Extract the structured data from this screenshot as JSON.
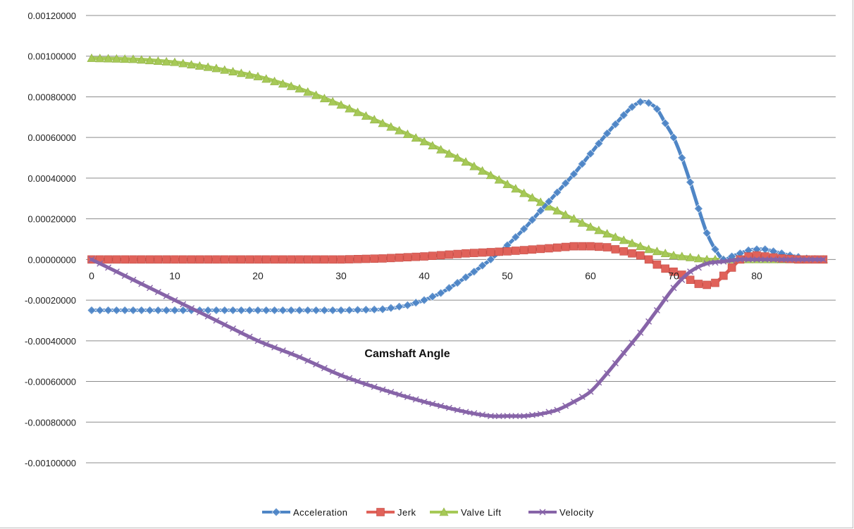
{
  "chart_data": {
    "type": "line",
    "title": "",
    "xlabel": "Camshaft Angle",
    "ylabel": "",
    "xlim": [
      0,
      88
    ],
    "ylim": [
      -0.001,
      0.0012
    ],
    "yticks": [
      0.0012,
      0.001,
      0.0008,
      0.0006,
      0.0004,
      0.0002,
      0,
      -0.0002,
      -0.0004,
      -0.0006,
      -0.0008,
      -0.001
    ],
    "ytick_labels": [
      "0.00120000",
      "0.00100000",
      "0.00080000",
      "0.00060000",
      "0.00040000",
      "0.00020000",
      "0.00000000",
      "-0.00020000",
      "-0.00040000",
      "-0.00060000",
      "-0.00080000",
      "-0.00100000"
    ],
    "xticks": [
      0,
      10,
      20,
      30,
      40,
      50,
      60,
      70,
      80
    ],
    "xtick_labels": [
      "0",
      "10",
      "20",
      "30",
      "40",
      "50",
      "60",
      "70",
      "80"
    ],
    "grid": "horizontal",
    "legend_position": "bottom",
    "series": [
      {
        "name": "Acceleration",
        "color": "#4f86c6",
        "marker": "diamond",
        "points": [
          [
            0,
            -0.00025
          ],
          [
            10,
            -0.00025
          ],
          [
            20,
            -0.00025
          ],
          [
            30,
            -0.00025
          ],
          [
            35,
            -0.000245
          ],
          [
            38,
            -0.000225
          ],
          [
            40,
            -0.0002
          ],
          [
            42,
            -0.000165
          ],
          [
            44,
            -0.000115
          ],
          [
            46,
            -6e-05
          ],
          [
            48,
            0.0
          ],
          [
            50,
            7e-05
          ],
          [
            52,
            0.00015
          ],
          [
            54,
            0.00024
          ],
          [
            56,
            0.00033
          ],
          [
            58,
            0.00042
          ],
          [
            60,
            0.00052
          ],
          [
            62,
            0.00062
          ],
          [
            64,
            0.00071
          ],
          [
            65,
            0.00075
          ],
          [
            66,
            0.000775
          ],
          [
            67,
            0.00077
          ],
          [
            68,
            0.00074
          ],
          [
            69,
            0.00067
          ],
          [
            70,
            0.0006
          ],
          [
            71,
            0.0005
          ],
          [
            72,
            0.00038
          ],
          [
            73,
            0.00025
          ],
          [
            74,
            0.00013
          ],
          [
            75,
            5e-05
          ],
          [
            76,
            0.0
          ],
          [
            77,
            1.5e-05
          ],
          [
            78,
            3e-05
          ],
          [
            79,
            4.5e-05
          ],
          [
            80,
            5e-05
          ],
          [
            81,
            5e-05
          ],
          [
            82,
            4e-05
          ],
          [
            84,
            2e-05
          ],
          [
            86,
            5e-06
          ],
          [
            88,
            0.0
          ]
        ]
      },
      {
        "name": "Jerk",
        "color": "#e0625a",
        "marker": "square",
        "points": [
          [
            0,
            0.0
          ],
          [
            20,
            0.0
          ],
          [
            30,
            0.0
          ],
          [
            35,
            5e-06
          ],
          [
            40,
            1.5e-05
          ],
          [
            45,
            3e-05
          ],
          [
            50,
            4e-05
          ],
          [
            55,
            5.5e-05
          ],
          [
            58,
            6.5e-05
          ],
          [
            60,
            6.5e-05
          ],
          [
            62,
            6e-05
          ],
          [
            64,
            4e-05
          ],
          [
            66,
            2e-05
          ],
          [
            67,
            0.0
          ],
          [
            68,
            -2.5e-05
          ],
          [
            69,
            -4.5e-05
          ],
          [
            70,
            -6e-05
          ],
          [
            71,
            -7.5e-05
          ],
          [
            72,
            -0.0001
          ],
          [
            73,
            -0.00012
          ],
          [
            74,
            -0.000125
          ],
          [
            75,
            -0.000115
          ],
          [
            76,
            -8e-05
          ],
          [
            77,
            -4e-05
          ],
          [
            78,
            0.0
          ],
          [
            79,
            1.5e-05
          ],
          [
            80,
            2e-05
          ],
          [
            81,
            1.5e-05
          ],
          [
            83,
            5e-06
          ],
          [
            85,
            0.0
          ],
          [
            88,
            0.0
          ]
        ]
      },
      {
        "name": "Valve Lift",
        "color": "#a6c957",
        "marker": "triangle",
        "points": [
          [
            0,
            0.00099
          ],
          [
            5,
            0.000985
          ],
          [
            10,
            0.00097
          ],
          [
            15,
            0.00094
          ],
          [
            20,
            0.0009
          ],
          [
            25,
            0.00084
          ],
          [
            30,
            0.00076
          ],
          [
            35,
            0.00067
          ],
          [
            40,
            0.00058
          ],
          [
            45,
            0.00048
          ],
          [
            50,
            0.00037
          ],
          [
            55,
            0.00026
          ],
          [
            60,
            0.00016
          ],
          [
            63,
            0.00011
          ],
          [
            65,
            8e-05
          ],
          [
            67,
            5e-05
          ],
          [
            70,
            2e-05
          ],
          [
            72,
            1e-05
          ],
          [
            74,
            0.0
          ],
          [
            76,
            0.0
          ],
          [
            80,
            0.0
          ],
          [
            88,
            0.0
          ]
        ]
      },
      {
        "name": "Velocity",
        "color": "#8764a8",
        "marker": "x",
        "points": [
          [
            0,
            0.0
          ],
          [
            5,
            -0.0001
          ],
          [
            10,
            -0.0002
          ],
          [
            15,
            -0.0003
          ],
          [
            20,
            -0.0004
          ],
          [
            25,
            -0.00048
          ],
          [
            30,
            -0.00057
          ],
          [
            35,
            -0.00064
          ],
          [
            40,
            -0.0007
          ],
          [
            45,
            -0.00075
          ],
          [
            48,
            -0.00077
          ],
          [
            50,
            -0.00077
          ],
          [
            52,
            -0.00077
          ],
          [
            54,
            -0.00076
          ],
          [
            56,
            -0.00074
          ],
          [
            58,
            -0.0007
          ],
          [
            60,
            -0.00065
          ],
          [
            62,
            -0.00056
          ],
          [
            64,
            -0.00046
          ],
          [
            66,
            -0.00036
          ],
          [
            68,
            -0.00025
          ],
          [
            70,
            -0.00014
          ],
          [
            72,
            -6e-05
          ],
          [
            74,
            -2e-05
          ],
          [
            76,
            -1e-05
          ],
          [
            78,
            0.0
          ],
          [
            80,
            0.0
          ],
          [
            88,
            0.0
          ]
        ]
      }
    ]
  },
  "legend": {
    "items": [
      {
        "label": "Acceleration",
        "color": "#4f86c6",
        "marker": "diamond"
      },
      {
        "label": "Jerk",
        "color": "#e0625a",
        "marker": "square"
      },
      {
        "label": "Valve Lift",
        "color": "#a6c957",
        "marker": "triangle"
      },
      {
        "label": "Velocity",
        "color": "#8764a8",
        "marker": "x"
      }
    ]
  }
}
